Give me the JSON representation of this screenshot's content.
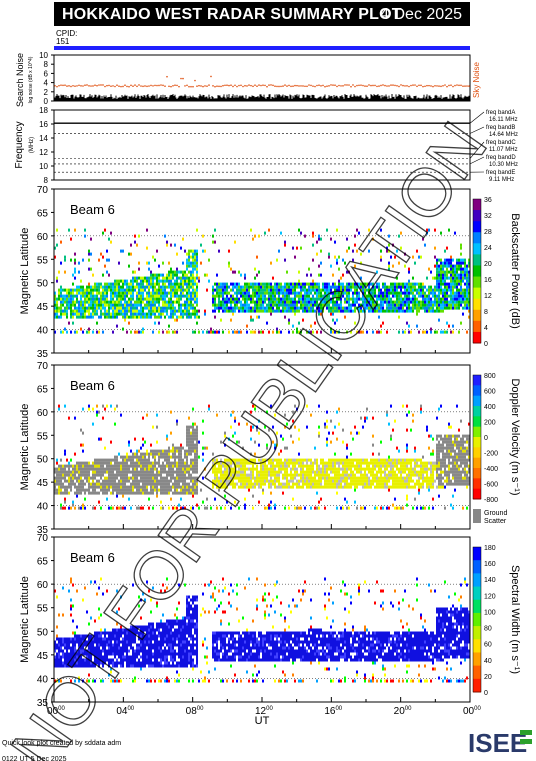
{
  "header": {
    "title": "HOKKAIDO WEST RADAR SUMMARY PLOT",
    "date": "4 Dec 2025"
  },
  "cpid": {
    "label": "CPID:",
    "value": "151"
  },
  "panels": {
    "noise": {
      "ylabel": "Search Noise",
      "sublabel": "log noise (dB x 10^4)",
      "right_label": "Sky Noise",
      "ticks": [
        "0",
        "2",
        "4",
        "6",
        "8",
        "10"
      ]
    },
    "freq": {
      "ylabel": "Frequency",
      "unit": "(MHz)",
      "ticks": [
        "8",
        "10",
        "12",
        "14",
        "16",
        "18"
      ],
      "bands": [
        {
          "name": "freq bandA",
          "value": "16.11 MHz"
        },
        {
          "name": "freq bandB",
          "value": "14.64 MHz"
        },
        {
          "name": "freq bandC",
          "value": "11.07 MHz"
        },
        {
          "name": "freq bandD",
          "value": "10.30 MHz"
        },
        {
          "name": "freq bandE",
          "value": "9.11 MHz"
        }
      ]
    },
    "lat_ticks": [
      "35",
      "40",
      "45",
      "50",
      "55",
      "60",
      "65",
      "70"
    ],
    "ylabel": "Magnetic Latitude",
    "beam_label": "Beam  6",
    "power": {
      "label": "Backscatter Power (dB)",
      "ticks": [
        "0",
        "4",
        "8",
        "12",
        "16",
        "20",
        "24",
        "28",
        "32",
        "36"
      ]
    },
    "velocity": {
      "label": "Doppler Velocity (m s⁻¹)",
      "ticks": [
        "-800",
        "-600",
        "-400",
        "-200",
        "0",
        "200",
        "400",
        "600",
        "800"
      ],
      "ground_label": "Ground",
      "scatter_label": "Scatter"
    },
    "width": {
      "label": "Spectral Width (m s⁻¹)",
      "ticks": [
        "0",
        "20",
        "40",
        "60",
        "80",
        "100",
        "120",
        "140",
        "160",
        "180"
      ]
    }
  },
  "xaxis": {
    "label": "UT",
    "ticks": [
      "00",
      "04",
      "08",
      "12",
      "16",
      "20",
      "00"
    ],
    "tick_sup": "00"
  },
  "footer": {
    "line1": "Quick look plot created by sddata adm",
    "line2": "0122 UT  5 Dec 2025",
    "logo": "ISEE"
  },
  "watermark": "NOT FOR PUBLICATION",
  "colors": {
    "cpid_bar": "#2020ff",
    "noise_orange": "#e05010",
    "ground": "#888888"
  },
  "chart_data": [
    {
      "type": "scatter",
      "title": "Search Noise",
      "xlabel": "UT",
      "ylabel": "Search Noise",
      "xlim": [
        0,
        24
      ],
      "ylim": [
        0,
        10
      ],
      "series": [
        {
          "name": "Sky Noise",
          "values": [
            3.3,
            3.3,
            3.4,
            3.3,
            3.5,
            3.3,
            3.3
          ]
        }
      ],
      "x": [
        0,
        4,
        8,
        12,
        16,
        20,
        24
      ]
    },
    {
      "type": "line",
      "title": "Frequency",
      "xlabel": "UT",
      "ylabel": "Frequency (MHz)",
      "xlim": [
        0,
        24
      ],
      "ylim": [
        8,
        18
      ],
      "series": [
        {
          "name": "freq bandA",
          "values": [
            16.11
          ]
        },
        {
          "name": "freq bandB",
          "values": [
            14.64
          ]
        },
        {
          "name": "freq bandC",
          "values": [
            11.07
          ]
        },
        {
          "name": "freq bandD",
          "values": [
            10.3
          ]
        },
        {
          "name": "freq bandE",
          "values": [
            9.11
          ]
        }
      ]
    },
    {
      "type": "heatmap",
      "title": "Beam 6 Backscatter Power",
      "xlabel": "UT",
      "ylabel": "Magnetic Latitude",
      "xlim": [
        0,
        24
      ],
      "ylim": [
        35,
        70
      ],
      "colorbar": [
        0,
        36
      ],
      "colorbar_label": "Backscatter Power (dB)"
    },
    {
      "type": "heatmap",
      "title": "Beam 6 Doppler Velocity",
      "xlabel": "UT",
      "ylabel": "Magnetic Latitude",
      "xlim": [
        0,
        24
      ],
      "ylim": [
        35,
        70
      ],
      "colorbar": [
        -800,
        800
      ],
      "colorbar_label": "Doppler Velocity (m s-1)"
    },
    {
      "type": "heatmap",
      "title": "Beam 6 Spectral Width",
      "xlabel": "UT",
      "ylabel": "Magnetic Latitude",
      "xlim": [
        0,
        24
      ],
      "ylim": [
        35,
        70
      ],
      "colorbar": [
        0,
        180
      ],
      "colorbar_label": "Spectral Width (m s-1)"
    }
  ]
}
